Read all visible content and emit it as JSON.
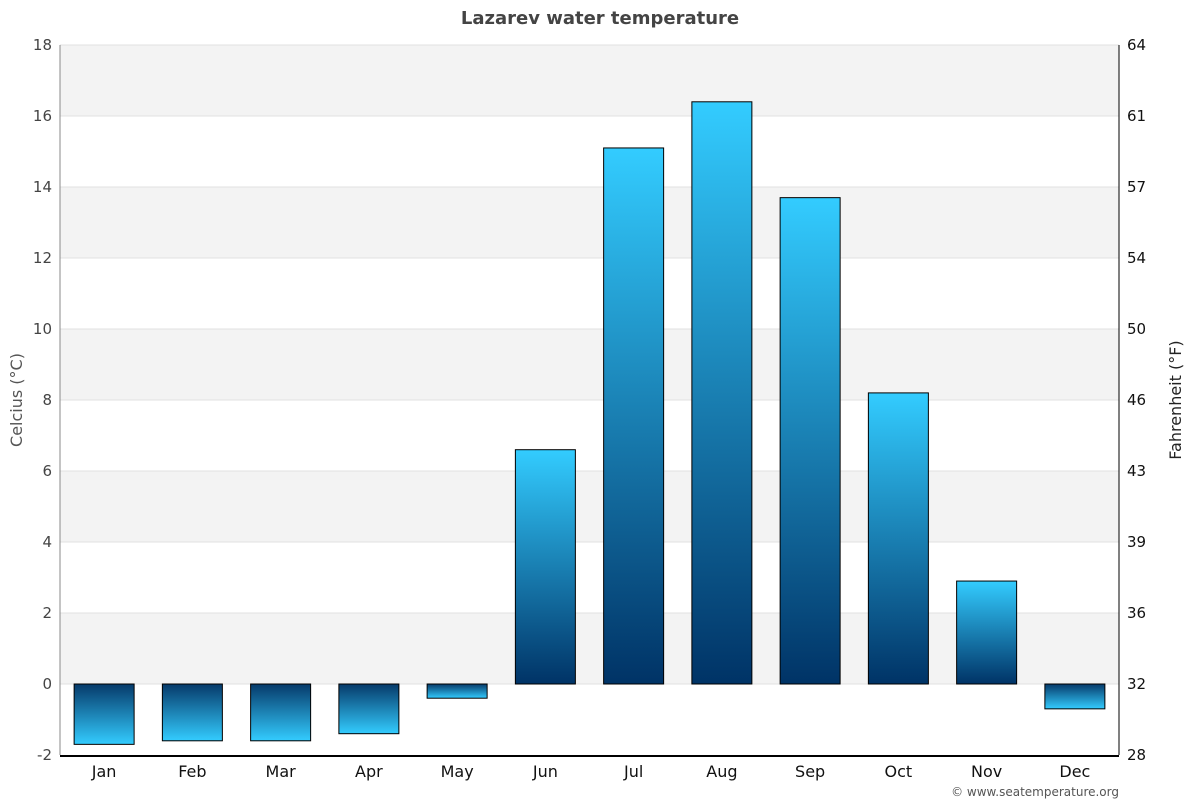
{
  "chart_data": {
    "type": "bar",
    "title": "Lazarev water temperature",
    "ylabel": "Celcius (°C)",
    "ylabel_right": "Fahrenheit (°F)",
    "categories": [
      "Jan",
      "Feb",
      "Mar",
      "Apr",
      "May",
      "Jun",
      "Jul",
      "Aug",
      "Sep",
      "Oct",
      "Nov",
      "Dec"
    ],
    "values": [
      -1.7,
      -1.6,
      -1.6,
      -1.4,
      -0.4,
      6.6,
      15.1,
      16.4,
      13.7,
      8.2,
      2.9,
      -0.7
    ],
    "ylim": [
      -2,
      18
    ],
    "yticks": [
      -2,
      0,
      2,
      4,
      6,
      8,
      10,
      12,
      14,
      16,
      18
    ],
    "yticks_right": [
      28,
      32,
      36,
      39,
      43,
      46,
      50,
      54,
      57,
      61,
      64
    ],
    "grid": true,
    "colors": {
      "bar_light": "#33ccff",
      "bar_dark": "#003366",
      "band": "#f3f3f3"
    }
  },
  "footer": {
    "credit": "© www.seatemperature.org"
  }
}
